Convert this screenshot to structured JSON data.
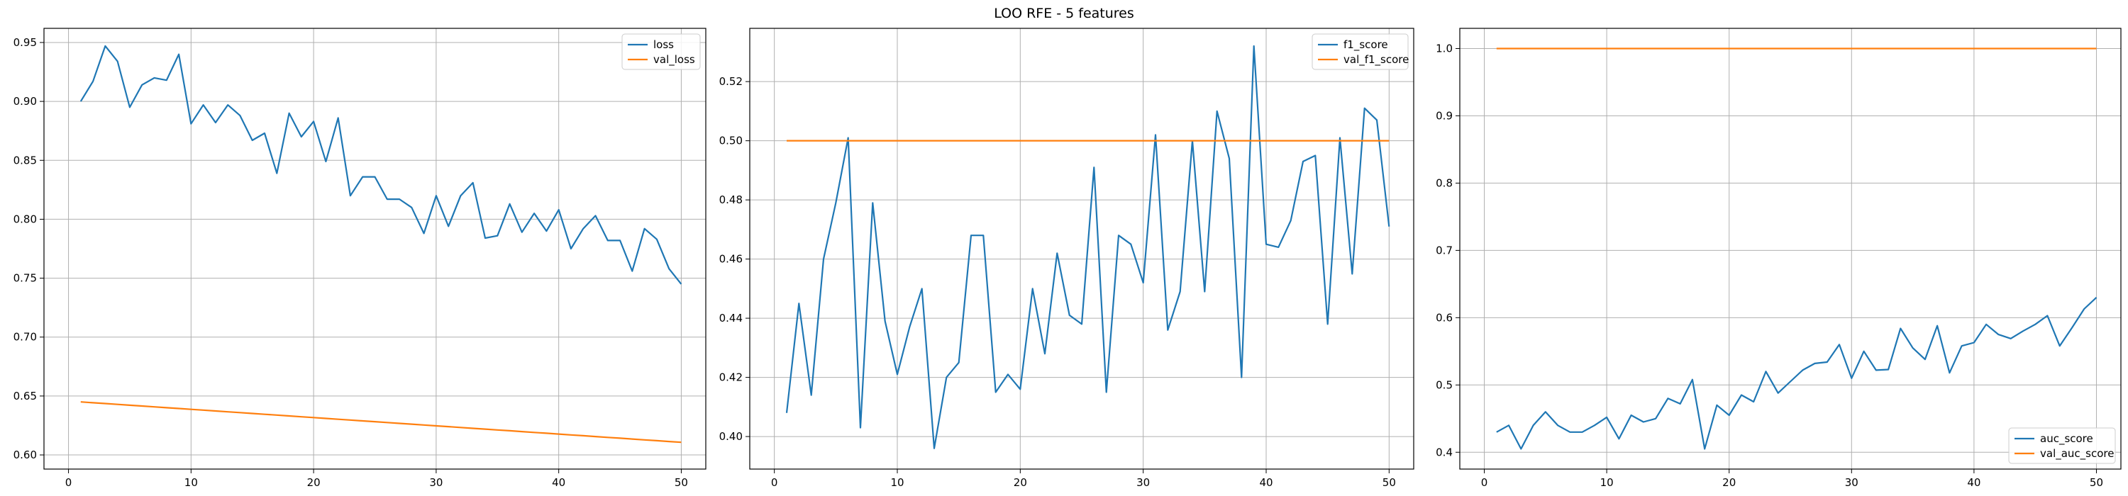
{
  "title": "LOO RFE - 5 features",
  "chart_data": [
    {
      "type": "line",
      "x": [
        1,
        2,
        3,
        4,
        5,
        6,
        7,
        8,
        9,
        10,
        11,
        12,
        13,
        14,
        15,
        16,
        17,
        18,
        19,
        20,
        21,
        22,
        23,
        24,
        25,
        26,
        27,
        28,
        29,
        30,
        31,
        32,
        33,
        34,
        35,
        36,
        37,
        38,
        39,
        40,
        41,
        42,
        43,
        44,
        45,
        46,
        47,
        48,
        49,
        50
      ],
      "xlim": [
        -2,
        52
      ],
      "ylim": [
        0.588,
        0.962
      ],
      "xticks": [
        0,
        10,
        20,
        30,
        40,
        50
      ],
      "yticks": [
        0.6,
        0.65,
        0.7,
        0.75,
        0.8,
        0.85,
        0.9,
        0.95
      ],
      "ytick_labels": [
        "0.60",
        "0.65",
        "0.70",
        "0.75",
        "0.80",
        "0.85",
        "0.90",
        "0.95"
      ],
      "grid": true,
      "legend_position": "upper right",
      "series": [
        {
          "name": "loss",
          "color": "#1f77b4",
          "values": [
            0.9,
            0.917,
            0.947,
            0.934,
            0.895,
            0.914,
            0.92,
            0.918,
            0.94,
            0.881,
            0.897,
            0.882,
            0.897,
            0.888,
            0.867,
            0.873,
            0.839,
            0.89,
            0.87,
            0.883,
            0.849,
            0.886,
            0.82,
            0.836,
            0.836,
            0.817,
            0.817,
            0.81,
            0.788,
            0.82,
            0.794,
            0.82,
            0.831,
            0.784,
            0.786,
            0.813,
            0.789,
            0.805,
            0.79,
            0.808,
            0.775,
            0.792,
            0.803,
            0.782,
            0.782,
            0.756,
            0.792,
            0.783,
            0.758,
            0.745
          ]
        },
        {
          "name": "val_loss",
          "color": "#ff7f0e",
          "values": [
            0.645,
            0.6443,
            0.6436,
            0.6429,
            0.6422,
            0.6415,
            0.6408,
            0.6401,
            0.6394,
            0.6387,
            0.638,
            0.6373,
            0.6366,
            0.6359,
            0.6352,
            0.6345,
            0.6338,
            0.6331,
            0.6324,
            0.6317,
            0.631,
            0.6303,
            0.6296,
            0.6289,
            0.6282,
            0.6275,
            0.6268,
            0.6261,
            0.6254,
            0.6247,
            0.624,
            0.6233,
            0.6226,
            0.6219,
            0.6212,
            0.6205,
            0.6198,
            0.6191,
            0.6184,
            0.6177,
            0.617,
            0.6163,
            0.6156,
            0.6149,
            0.6142,
            0.6135,
            0.6128,
            0.6121,
            0.6114,
            0.6107
          ]
        }
      ]
    },
    {
      "type": "line",
      "x": [
        1,
        2,
        3,
        4,
        5,
        6,
        7,
        8,
        9,
        10,
        11,
        12,
        13,
        14,
        15,
        16,
        17,
        18,
        19,
        20,
        21,
        22,
        23,
        24,
        25,
        26,
        27,
        28,
        29,
        30,
        31,
        32,
        33,
        34,
        35,
        36,
        37,
        38,
        39,
        40,
        41,
        42,
        43,
        44,
        45,
        46,
        47,
        48,
        49,
        50
      ],
      "xlim": [
        -2,
        52
      ],
      "ylim": [
        0.389,
        0.538
      ],
      "xticks": [
        0,
        10,
        20,
        30,
        40,
        50
      ],
      "yticks": [
        0.4,
        0.42,
        0.44,
        0.46,
        0.48,
        0.5,
        0.52
      ],
      "ytick_labels": [
        "0.40",
        "0.42",
        "0.44",
        "0.46",
        "0.48",
        "0.50",
        "0.52"
      ],
      "grid": true,
      "legend_position": "upper right",
      "series": [
        {
          "name": "f1_score",
          "color": "#1f77b4",
          "values": [
            0.408,
            0.445,
            0.414,
            0.46,
            0.479,
            0.501,
            0.403,
            0.479,
            0.439,
            0.421,
            0.437,
            0.45,
            0.396,
            0.42,
            0.425,
            0.468,
            0.468,
            0.415,
            0.421,
            0.416,
            0.45,
            0.428,
            0.462,
            0.441,
            0.438,
            0.491,
            0.415,
            0.468,
            0.465,
            0.452,
            0.502,
            0.436,
            0.449,
            0.5,
            0.449,
            0.51,
            0.494,
            0.42,
            0.532,
            0.465,
            0.464,
            0.473,
            0.493,
            0.495,
            0.438,
            0.501,
            0.455,
            0.511,
            0.507,
            0.471
          ]
        },
        {
          "name": "val_f1_score",
          "color": "#ff7f0e",
          "values": [
            0.5,
            0.5,
            0.5,
            0.5,
            0.5,
            0.5,
            0.5,
            0.5,
            0.5,
            0.5,
            0.5,
            0.5,
            0.5,
            0.5,
            0.5,
            0.5,
            0.5,
            0.5,
            0.5,
            0.5,
            0.5,
            0.5,
            0.5,
            0.5,
            0.5,
            0.5,
            0.5,
            0.5,
            0.5,
            0.5,
            0.5,
            0.5,
            0.5,
            0.5,
            0.5,
            0.5,
            0.5,
            0.5,
            0.5,
            0.5,
            0.5,
            0.5,
            0.5,
            0.5,
            0.5,
            0.5,
            0.5,
            0.5,
            0.5,
            0.5
          ]
        }
      ]
    },
    {
      "type": "line",
      "x": [
        1,
        2,
        3,
        4,
        5,
        6,
        7,
        8,
        9,
        10,
        11,
        12,
        13,
        14,
        15,
        16,
        17,
        18,
        19,
        20,
        21,
        22,
        23,
        24,
        25,
        26,
        27,
        28,
        29,
        30,
        31,
        32,
        33,
        34,
        35,
        36,
        37,
        38,
        39,
        40,
        41,
        42,
        43,
        44,
        45,
        46,
        47,
        48,
        49,
        50
      ],
      "xlim": [
        -2,
        52
      ],
      "ylim": [
        0.375,
        1.03
      ],
      "xticks": [
        0,
        10,
        20,
        30,
        40,
        50
      ],
      "yticks": [
        0.4,
        0.5,
        0.6,
        0.7,
        0.8,
        0.9,
        1.0
      ],
      "ytick_labels": [
        "0.4",
        "0.5",
        "0.6",
        "0.7",
        "0.8",
        "0.9",
        "1.0"
      ],
      "grid": true,
      "legend_position": "lower right",
      "series": [
        {
          "name": "auc_score",
          "color": "#1f77b4",
          "values": [
            0.43,
            0.44,
            0.405,
            0.44,
            0.46,
            0.44,
            0.43,
            0.43,
            0.44,
            0.452,
            0.42,
            0.455,
            0.445,
            0.45,
            0.48,
            0.472,
            0.508,
            0.405,
            0.47,
            0.455,
            0.485,
            0.475,
            0.52,
            0.488,
            0.505,
            0.522,
            0.532,
            0.534,
            0.56,
            0.51,
            0.55,
            0.522,
            0.523,
            0.584,
            0.555,
            0.538,
            0.588,
            0.518,
            0.558,
            0.563,
            0.59,
            0.575,
            0.569,
            0.58,
            0.59,
            0.603,
            0.558,
            0.585,
            0.613,
            0.63
          ]
        },
        {
          "name": "val_auc_score",
          "color": "#ff7f0e",
          "values": [
            1.0,
            1.0,
            1.0,
            1.0,
            1.0,
            1.0,
            1.0,
            1.0,
            1.0,
            1.0,
            1.0,
            1.0,
            1.0,
            1.0,
            1.0,
            1.0,
            1.0,
            1.0,
            1.0,
            1.0,
            1.0,
            1.0,
            1.0,
            1.0,
            1.0,
            1.0,
            1.0,
            1.0,
            1.0,
            1.0,
            1.0,
            1.0,
            1.0,
            1.0,
            1.0,
            1.0,
            1.0,
            1.0,
            1.0,
            1.0,
            1.0,
            1.0,
            1.0,
            1.0,
            1.0,
            1.0,
            1.0,
            1.0,
            1.0,
            1.0
          ]
        }
      ]
    }
  ]
}
